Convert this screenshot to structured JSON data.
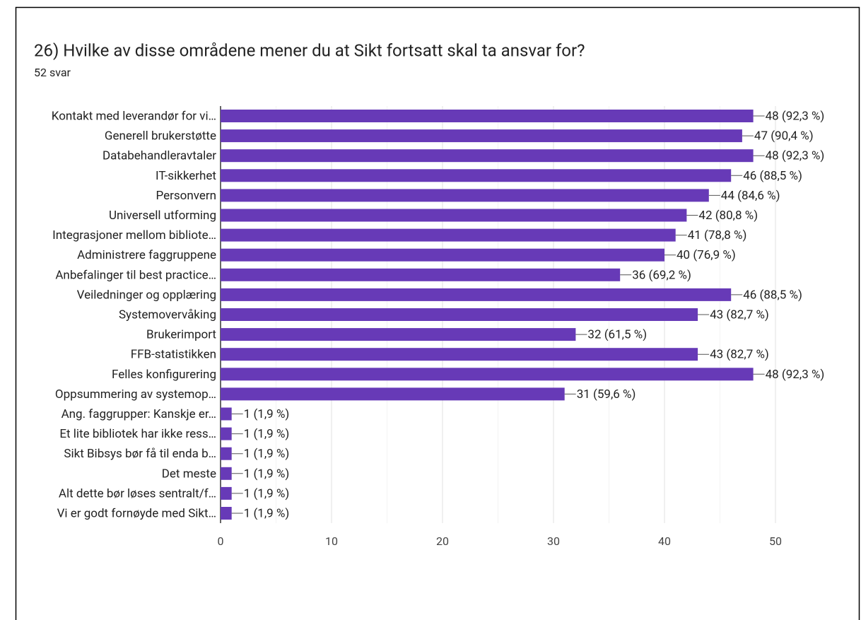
{
  "chart_data": {
    "type": "hbar",
    "title": "26) Hvilke av disse områdene mener du at Sikt fortsatt skal ta ansvar for?",
    "subtitle": "52 svar",
    "categories": [
      "Kontakt med leverandør for vi…",
      "Generell brukerstøtte",
      "Databehandleravtaler",
      "IT-sikkerhet",
      "Personvern",
      "Universell utforming",
      "Integrasjoner mellom bibliote…",
      "Administrere faggruppene",
      "Anbefalinger til best practice…",
      "Veiledninger og opplæring",
      "Systemovervåking",
      "Brukerimport",
      "FFB-statistikken",
      "Felles konfigurering",
      "Oppsummering av systemop…",
      "Ang. faggrupper: Kanskje er…",
      "Et lite bibliotek har ikke ress…",
      "Sikt Bibsys bør få til enda b…",
      "Det meste",
      "Alt dette bør løses sentralt/f…",
      "Vi er godt fornøyde med Sikt…"
    ],
    "values": [
      48,
      47,
      48,
      46,
      44,
      42,
      41,
      40,
      36,
      46,
      43,
      32,
      43,
      48,
      31,
      1,
      1,
      1,
      1,
      1,
      1
    ],
    "value_labels": [
      "48 (92,3 %)",
      "47 (90,4 %)",
      "48 (92,3 %)",
      "46 (88,5 %)",
      "44 (84,6 %)",
      "42 (80,8 %)",
      "41 (78,8 %)",
      "40 (76,9 %)",
      "36 (69,2 %)",
      "46 (88,5 %)",
      "43 (82,7 %)",
      "32 (61,5 %)",
      "43 (82,7 %)",
      "48 (92,3 %)",
      "31 (59,6 %)",
      "1 (1,9 %)",
      "1 (1,9 %)",
      "1 (1,9 %)",
      "1 (1,9 %)",
      "1 (1,9 %)",
      "1 (1,9 %)"
    ],
    "color": "#673ab7",
    "xlim": [
      0,
      50
    ],
    "xticks": [
      0,
      10,
      20,
      30,
      40,
      50
    ],
    "minor_xticks": [
      5,
      15,
      25,
      35,
      45
    ],
    "grid": true
  }
}
